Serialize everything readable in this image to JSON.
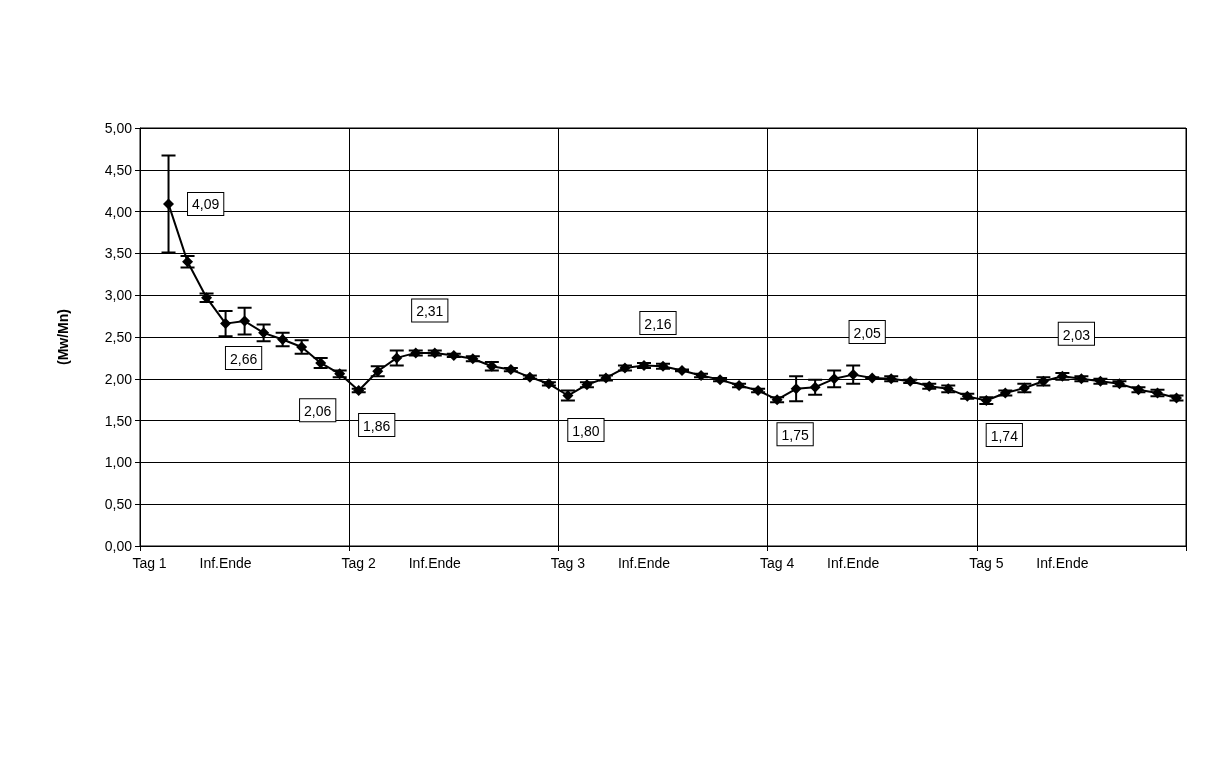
{
  "chart_data": {
    "type": "line",
    "ylabel": "(Mw/Mn)",
    "categories": [
      "Tag 1",
      null,
      null,
      null,
      "Inf.Ende",
      null,
      null,
      null,
      null,
      null,
      null,
      "Tag 2",
      null,
      null,
      null,
      "Inf.Ende",
      null,
      null,
      null,
      null,
      null,
      null,
      "Tag 3",
      null,
      null,
      null,
      "Inf.Ende",
      null,
      null,
      null,
      null,
      null,
      null,
      "Tag 4",
      null,
      null,
      null,
      "Inf.Ende",
      null,
      null,
      null,
      null,
      null,
      null,
      "Tag 5",
      null,
      null,
      null,
      "Inf.Ende",
      null,
      null,
      null,
      null,
      null,
      null
    ],
    "series": [
      {
        "color": "#000000",
        "values": [
          null,
          4.09,
          3.4,
          2.97,
          2.66,
          2.69,
          2.55,
          2.47,
          2.38,
          2.19,
          2.06,
          1.86,
          2.09,
          2.25,
          2.31,
          2.31,
          2.28,
          2.24,
          2.15,
          2.11,
          2.02,
          1.94,
          1.8,
          1.93,
          2.01,
          2.13,
          2.16,
          2.15,
          2.1,
          2.04,
          1.99,
          1.92,
          1.86,
          1.75,
          1.88,
          1.9,
          2.0,
          2.05,
          2.01,
          2.0,
          1.97,
          1.91,
          1.88,
          1.79,
          1.74,
          1.83,
          1.89,
          1.97,
          2.03,
          2.0,
          1.97,
          1.94,
          1.87,
          1.83,
          1.77
        ],
        "errors": [
          null,
          0.58,
          0.07,
          0.05,
          0.15,
          0.16,
          0.1,
          0.08,
          0.08,
          0.06,
          0.04,
          0.02,
          0.06,
          0.09,
          0.03,
          0.03,
          0.02,
          0.03,
          0.05,
          0.02,
          0.02,
          0.02,
          0.06,
          0.03,
          0.03,
          0.03,
          0.03,
          0.03,
          0.01,
          0.02,
          0.02,
          0.02,
          0.02,
          0.03,
          0.15,
          0.09,
          0.1,
          0.11,
          0.01,
          0.03,
          0.02,
          0.03,
          0.04,
          0.03,
          0.04,
          0.03,
          0.05,
          0.05,
          0.04,
          0.03,
          0.03,
          0.03,
          0.03,
          0.04,
          0.03
        ],
        "value_labels": [
          null,
          "4,09",
          null,
          null,
          "2,66",
          null,
          null,
          null,
          null,
          null,
          "2,06",
          "1,86",
          null,
          null,
          "2,31",
          null,
          null,
          null,
          null,
          null,
          null,
          null,
          "1,80",
          null,
          null,
          null,
          "2,16",
          null,
          null,
          null,
          null,
          null,
          null,
          "1,75",
          null,
          null,
          null,
          "2,05",
          null,
          null,
          null,
          null,
          null,
          null,
          "1,74",
          null,
          null,
          null,
          "2,03",
          null,
          null,
          null,
          null,
          null,
          null
        ]
      }
    ],
    "ylim": [
      0,
      5
    ],
    "yticks": [
      {
        "value": 0,
        "label": "0,00"
      },
      {
        "value": 0.5,
        "label": "0,50"
      },
      {
        "value": 1,
        "label": "1,00"
      },
      {
        "value": 1.5,
        "label": "1,50"
      },
      {
        "value": 2,
        "label": "2,00"
      },
      {
        "value": 2.5,
        "label": "2,50"
      },
      {
        "value": 3,
        "label": "3,00"
      },
      {
        "value": 3.5,
        "label": "3,50"
      },
      {
        "value": 4,
        "label": "4,00"
      },
      {
        "value": 4.5,
        "label": "4,50"
      },
      {
        "value": 5,
        "label": "5,00"
      }
    ],
    "grid": true,
    "marker": "diamond",
    "line_style": "solid"
  }
}
